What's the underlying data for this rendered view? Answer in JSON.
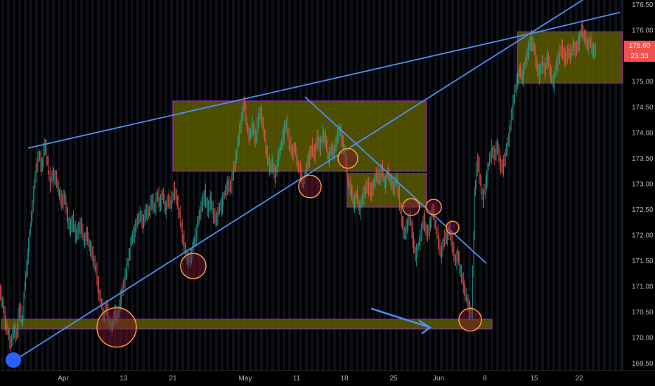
{
  "chart_data": {
    "type": "candlestick",
    "y_ticks": [
      "169.50",
      "170.00",
      "170.50",
      "171.00",
      "171.50",
      "172.00",
      "172.50",
      "173.00",
      "173.50",
      "174.00",
      "174.50",
      "175.00",
      "175.50",
      "176.00",
      "176.50"
    ],
    "y_tick_values": [
      169.5,
      170.0,
      170.5,
      171.0,
      171.5,
      172.0,
      172.5,
      173.0,
      173.5,
      174.0,
      174.5,
      175.0,
      175.5,
      176.0,
      176.5
    ],
    "x_ticks": [
      "Apr",
      "13",
      "21",
      "May",
      "11",
      "18",
      "25",
      "Jun",
      "8",
      "15",
      "22"
    ],
    "ylim": [
      169.3,
      176.55
    ],
    "last_price": "175.60",
    "countdown": "23:33",
    "close_path": [
      [
        0,
        170.9
      ],
      [
        4,
        170.7
      ],
      [
        8,
        170.3
      ],
      [
        12,
        170.1
      ],
      [
        16,
        169.85
      ],
      [
        20,
        170.2
      ],
      [
        24,
        170.0
      ],
      [
        28,
        170.6
      ],
      [
        32,
        170.3
      ],
      [
        36,
        171.0
      ],
      [
        40,
        171.6
      ],
      [
        44,
        172.2
      ],
      [
        48,
        172.8
      ],
      [
        52,
        173.3
      ],
      [
        56,
        173.6
      ],
      [
        60,
        173.3
      ],
      [
        64,
        173.8
      ],
      [
        68,
        173.4
      ],
      [
        72,
        173.0
      ],
      [
        76,
        173.2
      ],
      [
        80,
        173.1
      ],
      [
        84,
        172.9
      ],
      [
        88,
        172.6
      ],
      [
        92,
        172.8
      ],
      [
        96,
        172.4
      ],
      [
        100,
        172.1
      ],
      [
        104,
        172.3
      ],
      [
        108,
        172.0
      ],
      [
        112,
        172.1
      ],
      [
        116,
        172.2
      ],
      [
        120,
        171.9
      ],
      [
        124,
        172.0
      ],
      [
        128,
        171.8
      ],
      [
        132,
        171.6
      ],
      [
        136,
        171.4
      ],
      [
        140,
        171.0
      ],
      [
        144,
        170.7
      ],
      [
        148,
        170.4
      ],
      [
        152,
        170.6
      ],
      [
        156,
        170.3
      ],
      [
        160,
        170.2
      ],
      [
        164,
        170.5
      ],
      [
        168,
        170.4
      ],
      [
        172,
        170.8
      ],
      [
        176,
        171.0
      ],
      [
        180,
        171.3
      ],
      [
        184,
        171.6
      ],
      [
        188,
        171.9
      ],
      [
        192,
        172.1
      ],
      [
        196,
        172.3
      ],
      [
        200,
        172.4
      ],
      [
        204,
        172.2
      ],
      [
        208,
        172.5
      ],
      [
        212,
        172.4
      ],
      [
        216,
        172.7
      ],
      [
        220,
        172.5
      ],
      [
        224,
        172.8
      ],
      [
        228,
        172.6
      ],
      [
        232,
        172.8
      ],
      [
        236,
        172.5
      ],
      [
        240,
        172.7
      ],
      [
        244,
        172.6
      ],
      [
        248,
        172.9
      ],
      [
        252,
        172.7
      ],
      [
        256,
        172.4
      ],
      [
        260,
        172.0
      ],
      [
        264,
        171.7
      ],
      [
        268,
        171.5
      ],
      [
        272,
        171.6
      ],
      [
        276,
        171.8
      ],
      [
        280,
        172.1
      ],
      [
        284,
        172.4
      ],
      [
        288,
        172.6
      ],
      [
        292,
        172.8
      ],
      [
        296,
        172.5
      ],
      [
        300,
        172.7
      ],
      [
        304,
        172.4
      ],
      [
        308,
        172.3
      ],
      [
        312,
        172.5
      ],
      [
        316,
        172.6
      ],
      [
        320,
        172.8
      ],
      [
        324,
        173.0
      ],
      [
        328,
        172.9
      ],
      [
        332,
        173.2
      ],
      [
        336,
        173.5
      ],
      [
        340,
        173.9
      ],
      [
        344,
        174.3
      ],
      [
        348,
        174.6
      ],
      [
        352,
        174.1
      ],
      [
        356,
        173.9
      ],
      [
        360,
        174.2
      ],
      [
        364,
        173.8
      ],
      [
        368,
        174.3
      ],
      [
        372,
        174.4
      ],
      [
        376,
        174.0
      ],
      [
        380,
        173.6
      ],
      [
        384,
        173.3
      ],
      [
        388,
        173.4
      ],
      [
        392,
        173.1
      ],
      [
        396,
        173.5
      ],
      [
        400,
        173.7
      ],
      [
        404,
        174.0
      ],
      [
        408,
        174.2
      ],
      [
        412,
        173.8
      ],
      [
        416,
        173.6
      ],
      [
        420,
        173.7
      ],
      [
        424,
        173.4
      ],
      [
        428,
        173.2
      ],
      [
        432,
        173.0
      ],
      [
        436,
        173.3
      ],
      [
        440,
        173.5
      ],
      [
        444,
        173.7
      ],
      [
        448,
        173.6
      ],
      [
        452,
        173.9
      ],
      [
        456,
        173.7
      ],
      [
        460,
        174.0
      ],
      [
        464,
        173.8
      ],
      [
        468,
        173.5
      ],
      [
        472,
        173.7
      ],
      [
        476,
        173.6
      ],
      [
        480,
        173.9
      ],
      [
        484,
        174.1
      ],
      [
        488,
        173.8
      ],
      [
        492,
        173.5
      ],
      [
        496,
        173.0
      ],
      [
        500,
        172.9
      ],
      [
        504,
        172.6
      ],
      [
        508,
        172.8
      ],
      [
        512,
        172.5
      ],
      [
        516,
        172.7
      ],
      [
        520,
        172.9
      ],
      [
        524,
        173.0
      ],
      [
        528,
        172.8
      ],
      [
        532,
        173.0
      ],
      [
        536,
        173.2
      ],
      [
        540,
        173.1
      ],
      [
        544,
        173.3
      ],
      [
        548,
        173.0
      ],
      [
        552,
        173.2
      ],
      [
        556,
        173.1
      ],
      [
        560,
        172.9
      ],
      [
        564,
        173.1
      ],
      [
        568,
        172.8
      ],
      [
        572,
        172.3
      ],
      [
        576,
        172.0
      ],
      [
        580,
        172.2
      ],
      [
        584,
        172.4
      ],
      [
        588,
        171.9
      ],
      [
        592,
        171.6
      ],
      [
        596,
        171.8
      ],
      [
        600,
        172.1
      ],
      [
        604,
        172.3
      ],
      [
        608,
        172.0
      ],
      [
        612,
        172.2
      ],
      [
        616,
        172.5
      ],
      [
        620,
        172.2
      ],
      [
        624,
        171.9
      ],
      [
        628,
        171.6
      ],
      [
        632,
        171.9
      ],
      [
        636,
        172.0
      ],
      [
        640,
        172.1
      ],
      [
        644,
        171.8
      ],
      [
        648,
        171.5
      ],
      [
        652,
        171.6
      ],
      [
        656,
        171.3
      ],
      [
        660,
        171.0
      ],
      [
        664,
        170.8
      ],
      [
        668,
        170.5
      ],
      [
        672,
        170.5
      ],
      [
        676,
        172.8
      ],
      [
        680,
        173.5
      ],
      [
        684,
        173.0
      ],
      [
        688,
        172.7
      ],
      [
        692,
        173.0
      ],
      [
        696,
        173.4
      ],
      [
        700,
        173.7
      ],
      [
        704,
        173.5
      ],
      [
        708,
        173.8
      ],
      [
        712,
        173.4
      ],
      [
        716,
        173.3
      ],
      [
        720,
        173.6
      ],
      [
        724,
        173.9
      ],
      [
        728,
        174.3
      ],
      [
        732,
        174.7
      ],
      [
        736,
        175.0
      ],
      [
        740,
        175.2
      ],
      [
        744,
        175.1
      ],
      [
        748,
        175.4
      ],
      [
        752,
        175.6
      ],
      [
        756,
        175.8
      ],
      [
        760,
        175.7
      ],
      [
        764,
        175.3
      ],
      [
        768,
        175.1
      ],
      [
        772,
        175.4
      ],
      [
        776,
        175.2
      ],
      [
        780,
        175.5
      ],
      [
        784,
        175.1
      ],
      [
        788,
        175.0
      ],
      [
        792,
        175.3
      ],
      [
        796,
        175.5
      ],
      [
        800,
        175.7
      ],
      [
        804,
        175.4
      ],
      [
        808,
        175.6
      ],
      [
        812,
        175.5
      ],
      [
        816,
        175.7
      ],
      [
        820,
        175.6
      ],
      [
        824,
        175.8
      ],
      [
        828,
        176.0
      ],
      [
        832,
        175.9
      ],
      [
        836,
        175.7
      ],
      [
        840,
        175.8
      ],
      [
        844,
        175.6
      ],
      [
        848,
        175.6
      ]
    ],
    "trendlines": [
      {
        "from": [
          40,
          173.7
        ],
        "to": [
          760,
          175.95
        ]
      },
      {
        "from": [
          14,
          169.5
        ],
        "to": [
          830,
          176.6
        ]
      },
      {
        "from": [
          760,
          175.95
        ],
        "to": [
          882,
          176.35
        ]
      },
      {
        "from": [
          434,
          174.7
        ],
        "to": [
          692,
          171.45
        ]
      }
    ],
    "zones": [
      {
        "x1": 246,
        "x2": 607,
        "y1": 173.25,
        "y2": 174.62
      },
      {
        "x1": 494,
        "x2": 607,
        "y1": 172.55,
        "y2": 173.2
      },
      {
        "x1": 2,
        "x2": 700,
        "y1": 170.17,
        "y2": 170.36
      },
      {
        "x1": 736,
        "x2": 886,
        "y1": 174.97,
        "y2": 175.97
      }
    ],
    "circles": [
      {
        "x": 166,
        "y": 170.2,
        "r": 28
      },
      {
        "x": 275,
        "y": 171.4,
        "r": 18
      },
      {
        "x": 441,
        "y": 172.95,
        "r": 16
      },
      {
        "x": 495,
        "y": 173.5,
        "r": 14
      },
      {
        "x": 585,
        "y": 172.55,
        "r": 12
      },
      {
        "x": 617,
        "y": 172.55,
        "r": 11
      },
      {
        "x": 644,
        "y": 172.15,
        "r": 9
      },
      {
        "x": 669,
        "y": 170.35,
        "r": 16
      }
    ],
    "arrow": {
      "from": [
        528,
        170.57
      ],
      "to": [
        612,
        170.2
      ]
    },
    "colors": {
      "zone_fill": "#5a5a00",
      "zone_border": "#9c27b0",
      "trendline": "#4f8ef7",
      "circle": "#ff9e40",
      "up": "#26a69a",
      "down": "#ef5350",
      "price_tag": "#ef5350"
    }
  }
}
